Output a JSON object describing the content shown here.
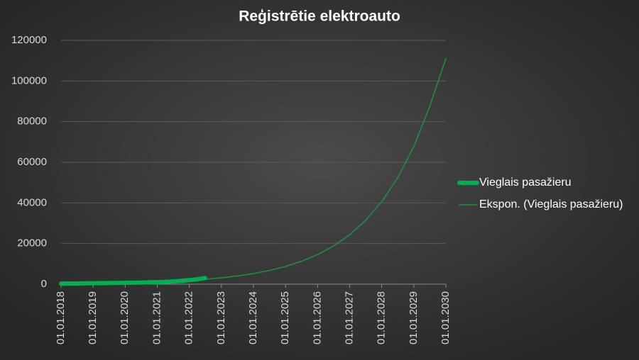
{
  "chart_data": {
    "type": "line",
    "title": "Reģistrētie elektroauto",
    "ylim": [
      0,
      120000
    ],
    "yticks": [
      0,
      20000,
      40000,
      60000,
      80000,
      100000,
      120000
    ],
    "grid": true,
    "xlim": [
      "2018-01-01",
      "2030-01-01"
    ],
    "xticks": [
      {
        "value": "2018-01-01",
        "label": "01.01.2018"
      },
      {
        "value": "2019-01-01",
        "label": "01.01.2019"
      },
      {
        "value": "2020-01-01",
        "label": "01.01.2020"
      },
      {
        "value": "2021-01-01",
        "label": "01.01.2021"
      },
      {
        "value": "2022-01-01",
        "label": "01.01.2022"
      },
      {
        "value": "2023-01-01",
        "label": "01.01.2023"
      },
      {
        "value": "2024-01-01",
        "label": "01.01.2024"
      },
      {
        "value": "2025-01-01",
        "label": "01.01.2025"
      },
      {
        "value": "2026-01-01",
        "label": "01.01.2026"
      },
      {
        "value": "2027-01-01",
        "label": "01.01.2027"
      },
      {
        "value": "2028-01-01",
        "label": "01.01.2028"
      },
      {
        "value": "2029-01-01",
        "label": "01.01.2029"
      },
      {
        "value": "2030-01-01",
        "label": "01.01.2030"
      }
    ],
    "legend": "right",
    "series": [
      {
        "name": "Vieglais pasažieru",
        "color": "#00b050",
        "x": [
          "2018-01-01",
          "2018-04-01",
          "2018-07-01",
          "2018-10-01",
          "2019-01-01",
          "2019-04-01",
          "2019-07-01",
          "2019-10-01",
          "2020-01-01",
          "2020-04-01",
          "2020-07-01",
          "2020-10-01",
          "2021-01-01",
          "2021-04-01",
          "2021-07-01",
          "2021-10-01",
          "2022-01-01",
          "2022-04-01",
          "2022-07-01"
        ],
        "values": [
          300,
          330,
          370,
          420,
          480,
          520,
          560,
          610,
          660,
          720,
          800,
          900,
          1000,
          1150,
          1350,
          1650,
          2000,
          2400,
          3000
        ]
      },
      {
        "name": "Ekspon. (Vieglais pasažieru)",
        "color": "#1e8e3e",
        "x": [
          "2018-01-01",
          "2018-07-01",
          "2019-01-01",
          "2019-07-01",
          "2020-01-01",
          "2020-07-01",
          "2021-01-01",
          "2021-07-01",
          "2022-01-01",
          "2022-07-01",
          "2023-01-01",
          "2023-07-01",
          "2024-01-01",
          "2024-07-01",
          "2025-01-01",
          "2025-07-01",
          "2026-01-01",
          "2026-07-01",
          "2027-01-01",
          "2027-07-01",
          "2028-01-01",
          "2028-07-01",
          "2029-01-01",
          "2029-07-01",
          "2030-01-01"
        ],
        "values": [
          240,
          310,
          400,
          520,
          670,
          870,
          1120,
          1450,
          1870,
          2420,
          3130,
          4040,
          5220,
          6750,
          8720,
          11270,
          14560,
          18810,
          24300,
          31400,
          40570,
          52400,
          67700,
          87500,
          111000
        ]
      }
    ]
  }
}
